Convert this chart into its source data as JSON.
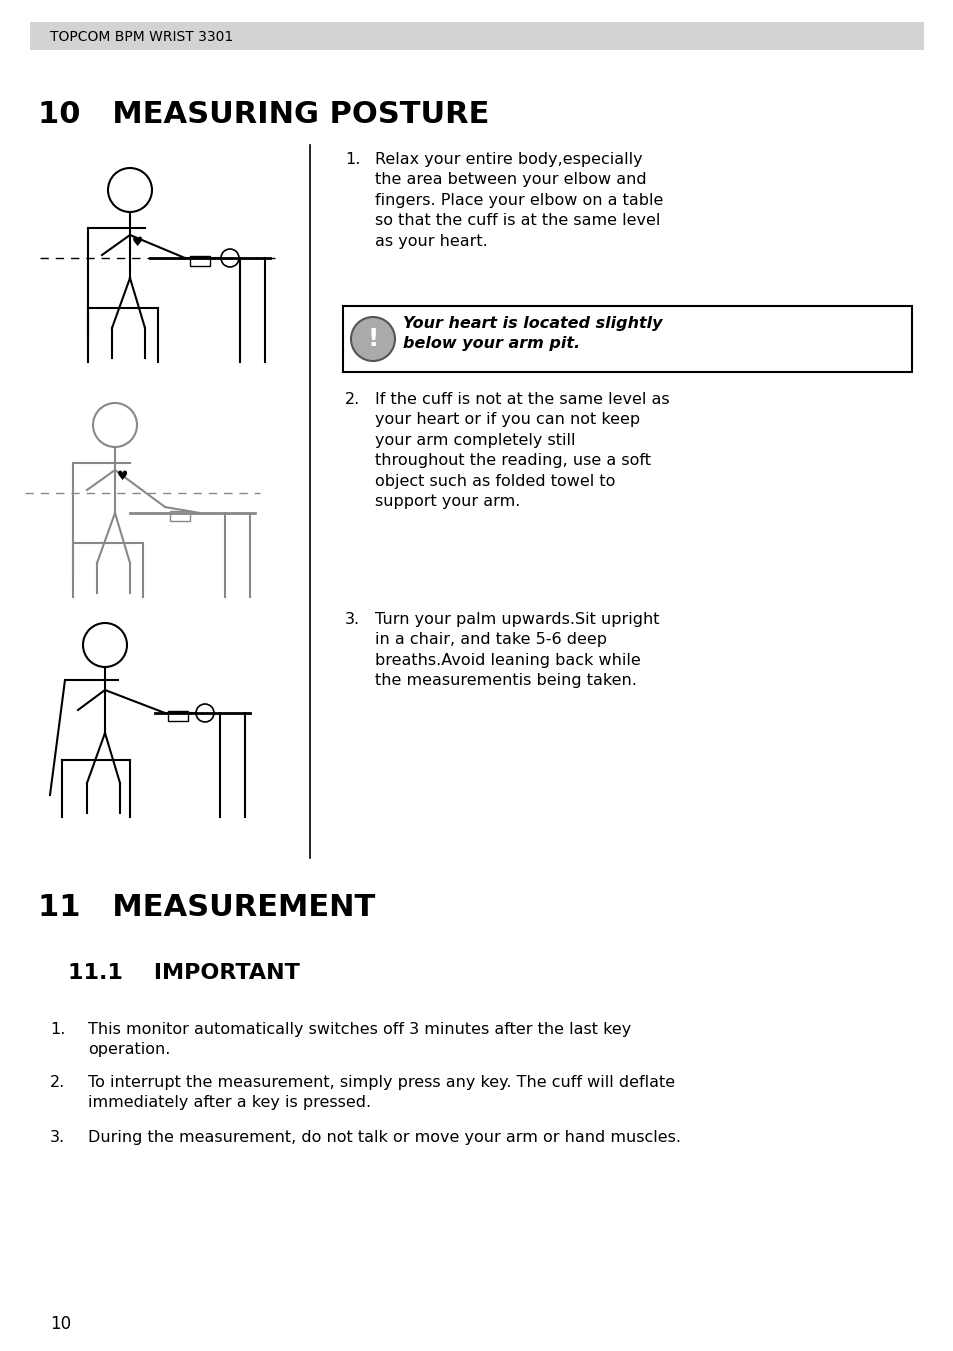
{
  "header_text": "TOPCOM BPM WRIST 3301",
  "header_bg": "#d3d3d3",
  "title_10": "10   MEASURING POSTURE",
  "title_11": "11   MEASUREMENT",
  "subtitle_11": "11.1    IMPORTANT",
  "point1_text": "Relax your entire body,especially\nthe area between your elbow and\nfingers. Place your elbow on a table\nso that the cuff is at the same level\nas your heart.",
  "warning_text": "Your heart is located slightly\nbelow your arm pit.",
  "point2_text": "If the cuff is not at the same level as\nyour heart or if you can not keep\nyour arm completely still\nthroughout the reading, use a soft\nobject such as folded towel to\nsupport your arm.",
  "point3_text": "Turn your palm upwards.Sit upright\nin a chair, and take 5-6 deep\nbreaths.Avoid leaning back while\nthe measurementis being taken.",
  "list_item1": "This monitor automatically switches off 3 minutes after the last key\noperation.",
  "list_item2": "To interrupt the measurement, simply press any key. The cuff will deflate\nimmediately after a key is pressed.",
  "list_item3": "During the measurement, do not talk or move your arm or hand muscles.",
  "page_number": "10",
  "bg_color": "#ffffff",
  "text_color": "#000000",
  "header_text_color": "#000000"
}
